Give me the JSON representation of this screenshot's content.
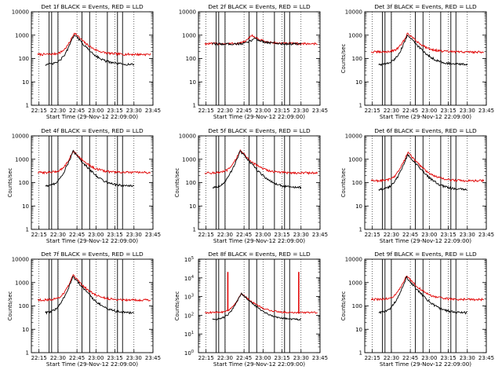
{
  "figure": {
    "background": "#ffffff"
  },
  "colors": {
    "events": "#000000",
    "lld": "#e00000",
    "axis": "#000000",
    "grid": "#000000"
  },
  "chart_data": [
    {
      "id": "det1f",
      "type": "line",
      "title": "Det 1f BLACK = Events, RED = LLD",
      "xlabel": "Start Time (29-Nov-12 22:09:00)",
      "ylabel": "",
      "yscale": "log",
      "ylim": [
        1,
        10000
      ],
      "ytick_style": "plain",
      "xtick_labels": [
        "22:15",
        "22:30",
        "22:45",
        "23:00",
        "23:15",
        "23:30",
        "23:45"
      ],
      "xlim_minutes": [
        0,
        96
      ],
      "series": [
        {
          "name": "Events",
          "color": "#000000",
          "base": 55,
          "peak": 1100,
          "peak_min": 34,
          "start_min": 11,
          "end_min": 81
        },
        {
          "name": "LLD",
          "color": "#e00000",
          "base": 150,
          "peak": 1300,
          "peak_min": 34,
          "start_min": 5,
          "end_min": 94
        }
      ],
      "vlines_min": [
        14,
        16,
        21,
        40,
        46,
        60,
        68,
        72
      ]
    },
    {
      "id": "det2f",
      "type": "line",
      "title": "Det 2f BLACK = Events, RED = LLD",
      "xlabel": "Start Time (29-Nov-12 22:09:00)",
      "ylabel": "",
      "yscale": "log",
      "ylim": [
        1,
        10000
      ],
      "ytick_style": "plain",
      "xtick_labels": [
        "22:15",
        "22:30",
        "22:45",
        "23:00",
        "23:15",
        "23:30",
        "23:45"
      ],
      "xlim_minutes": [
        0,
        96
      ],
      "series": [
        {
          "name": "Events",
          "color": "#000000",
          "base": 420,
          "peak": 760,
          "peak_min": 44,
          "start_min": 11,
          "end_min": 81
        },
        {
          "name": "LLD",
          "color": "#e00000",
          "base": 430,
          "peak": 1000,
          "peak_min": 42,
          "start_min": 5,
          "end_min": 94
        }
      ],
      "vlines_min": [
        14,
        16,
        21,
        40,
        46,
        60,
        68,
        72
      ]
    },
    {
      "id": "det3f",
      "type": "line",
      "title": "Det 3f BLACK = Events, RED = LLD",
      "xlabel": "Start Time (29-Nov-12 22:09:00)",
      "ylabel": "Counts/sec",
      "yscale": "log",
      "ylim": [
        1,
        10000
      ],
      "ytick_style": "plain",
      "xtick_labels": [
        "22:15",
        "22:30",
        "22:45",
        "23:00",
        "23:15",
        "23:30",
        "23:45"
      ],
      "xlim_minutes": [
        0,
        96
      ],
      "series": [
        {
          "name": "Events",
          "color": "#000000",
          "base": 55,
          "peak": 1050,
          "peak_min": 34,
          "start_min": 11,
          "end_min": 81
        },
        {
          "name": "LLD",
          "color": "#e00000",
          "base": 190,
          "peak": 1250,
          "peak_min": 34,
          "start_min": 5,
          "end_min": 94
        }
      ],
      "vlines_min": [
        14,
        16,
        21,
        40,
        46,
        60,
        68,
        72
      ]
    },
    {
      "id": "det4f",
      "type": "line",
      "title": "Det 4f BLACK = Events, RED = LLD",
      "xlabel": "Start Time (29-Nov-12 22:09:00)",
      "ylabel": "Counts/sec",
      "yscale": "log",
      "ylim": [
        1,
        10000
      ],
      "ytick_style": "plain",
      "xtick_labels": [
        "22:15",
        "22:30",
        "22:45",
        "23:00",
        "23:15",
        "23:30",
        "23:45"
      ],
      "xlim_minutes": [
        0,
        96
      ],
      "series": [
        {
          "name": "Events",
          "color": "#000000",
          "base": 70,
          "peak": 2200,
          "peak_min": 33,
          "start_min": 11,
          "end_min": 81
        },
        {
          "name": "LLD",
          "color": "#e00000",
          "base": 270,
          "peak": 2300,
          "peak_min": 33,
          "start_min": 5,
          "end_min": 94
        }
      ],
      "vlines_min": [
        14,
        16,
        21,
        40,
        46,
        60,
        68,
        72
      ]
    },
    {
      "id": "det5f",
      "type": "line",
      "title": "Det 5f BLACK = Events, RED = LLD",
      "xlabel": "Start Time (29-Nov-12 22:09:00)",
      "ylabel": "Counts/sec",
      "yscale": "log",
      "ylim": [
        1,
        10000
      ],
      "ytick_style": "plain",
      "xtick_labels": [
        "22:15",
        "22:30",
        "22:45",
        "23:00",
        "23:15",
        "23:30",
        "23:45"
      ],
      "xlim_minutes": [
        0,
        96
      ],
      "series": [
        {
          "name": "Events",
          "color": "#000000",
          "base": 60,
          "peak": 2300,
          "peak_min": 33,
          "start_min": 11,
          "end_min": 81
        },
        {
          "name": "LLD",
          "color": "#e00000",
          "base": 260,
          "peak": 2400,
          "peak_min": 33,
          "start_min": 5,
          "end_min": 94
        }
      ],
      "vlines_min": [
        14,
        16,
        21,
        40,
        46,
        60,
        68,
        72
      ]
    },
    {
      "id": "det6f",
      "type": "line",
      "title": "Det 6f BLACK = Events, RED = LLD",
      "xlabel": "Start Time (29-Nov-12 22:09:00)",
      "ylabel": "Counts/sec",
      "yscale": "log",
      "ylim": [
        1,
        10000
      ],
      "ytick_style": "plain",
      "xtick_labels": [
        "22:15",
        "22:30",
        "22:45",
        "23:00",
        "23:15",
        "23:30",
        "23:45"
      ],
      "xlim_minutes": [
        0,
        96
      ],
      "series": [
        {
          "name": "Events",
          "color": "#000000",
          "base": 50,
          "peak": 1600,
          "peak_min": 34,
          "start_min": 11,
          "end_min": 81
        },
        {
          "name": "LLD",
          "color": "#e00000",
          "base": 120,
          "peak": 2000,
          "peak_min": 34,
          "start_min": 5,
          "end_min": 94
        }
      ],
      "vlines_min": [
        14,
        16,
        21,
        40,
        46,
        60,
        68,
        72
      ]
    },
    {
      "id": "det7f",
      "type": "line",
      "title": "Det 7f BLACK = Events, RED = LLD",
      "xlabel": "Start Time (29-Nov-12 22:09:00)",
      "ylabel": "Counts/sec",
      "yscale": "log",
      "ylim": [
        1,
        10000
      ],
      "ytick_style": "plain",
      "xtick_labels": [
        "22:15",
        "22:30",
        "22:45",
        "23:00",
        "23:15",
        "23:30",
        "23:45"
      ],
      "xlim_minutes": [
        0,
        96
      ],
      "series": [
        {
          "name": "Events",
          "color": "#000000",
          "base": 50,
          "peak": 1800,
          "peak_min": 33,
          "start_min": 11,
          "end_min": 81
        },
        {
          "name": "LLD",
          "color": "#e00000",
          "base": 180,
          "peak": 2000,
          "peak_min": 33,
          "start_min": 5,
          "end_min": 94
        }
      ],
      "vlines_min": [
        14,
        16,
        21,
        40,
        46,
        60,
        68,
        72
      ]
    },
    {
      "id": "det8f",
      "type": "line",
      "title": "Det 8f BLACK = Events, RED = LLD",
      "xlabel": "Start Time (29-Nov-12 22:09:00)",
      "ylabel": "Counts/sec",
      "yscale": "log",
      "ylim": [
        1,
        100000
      ],
      "ytick_style": "power",
      "ytick_base": "10",
      "ytick_exponents": [
        "0",
        "1",
        "2",
        "3",
        "4",
        "5"
      ],
      "xtick_labels": [
        "22:15",
        "22:30",
        "22:45",
        "23:00",
        "23:15",
        "23:30",
        "23:45"
      ],
      "xlim_minutes": [
        0,
        96
      ],
      "series": [
        {
          "name": "Events",
          "color": "#000000",
          "base": 60,
          "peak": 1500,
          "peak_min": 34,
          "start_min": 11,
          "end_min": 81
        },
        {
          "name": "LLD",
          "color": "#e00000",
          "base": 140,
          "peak": 1500,
          "peak_min": 34,
          "start_min": 5,
          "end_min": 94,
          "spike_mins": [
            23,
            79
          ],
          "spike_value": 20000
        }
      ],
      "vlines_min": [
        14,
        16,
        21,
        40,
        46,
        60,
        68,
        72
      ]
    },
    {
      "id": "det9f",
      "type": "line",
      "title": "Det 9f BLACK = Events, RED = LLD",
      "xlabel": "Start Time (29-Nov-12 22:09:00)",
      "ylabel": "Counts/sec",
      "yscale": "log",
      "ylim": [
        1,
        10000
      ],
      "ytick_style": "plain",
      "xtick_labels": [
        "22:15",
        "22:30",
        "22:45",
        "23:00",
        "23:15",
        "23:30",
        "23:45"
      ],
      "xlim_minutes": [
        0,
        96
      ],
      "series": [
        {
          "name": "Events",
          "color": "#000000",
          "base": 50,
          "peak": 1700,
          "peak_min": 33,
          "start_min": 11,
          "end_min": 81
        },
        {
          "name": "LLD",
          "color": "#e00000",
          "base": 190,
          "peak": 2000,
          "peak_min": 33,
          "start_min": 5,
          "end_min": 94
        }
      ],
      "vlines_min": [
        14,
        16,
        21,
        40,
        46,
        60,
        68,
        72
      ]
    }
  ]
}
